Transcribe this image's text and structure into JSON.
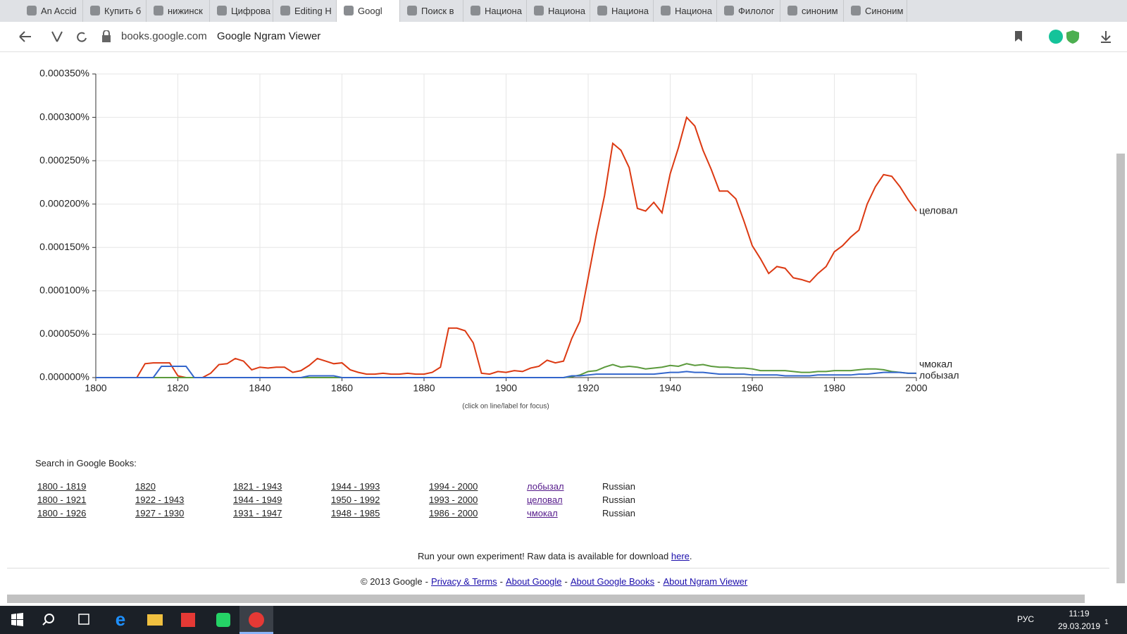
{
  "browser": {
    "tabs": [
      "An Accid",
      "Купить б",
      "нижинск",
      "Цифрова",
      "Editing H",
      "Googl",
      "Поиск в",
      "Национа",
      "Национа",
      "Национа",
      "Национа",
      "Филолог",
      "синоним",
      "Синоним"
    ],
    "active_tab": 5,
    "url": "books.google.com",
    "page_title": "Google Ngram Viewer"
  },
  "chart_data": {
    "type": "line",
    "note": "(click on line/label for focus)",
    "x": [
      1800,
      1802,
      1804,
      1806,
      1808,
      1810,
      1812,
      1814,
      1816,
      1818,
      1820,
      1822,
      1824,
      1826,
      1828,
      1830,
      1832,
      1834,
      1836,
      1838,
      1840,
      1842,
      1844,
      1846,
      1848,
      1850,
      1852,
      1854,
      1856,
      1858,
      1860,
      1862,
      1864,
      1866,
      1868,
      1870,
      1872,
      1874,
      1876,
      1878,
      1880,
      1882,
      1884,
      1886,
      1888,
      1890,
      1892,
      1894,
      1896,
      1898,
      1900,
      1902,
      1904,
      1906,
      1908,
      1910,
      1912,
      1914,
      1916,
      1918,
      1920,
      1922,
      1924,
      1926,
      1928,
      1930,
      1932,
      1934,
      1936,
      1938,
      1940,
      1942,
      1944,
      1946,
      1948,
      1950,
      1952,
      1954,
      1956,
      1958,
      1960,
      1962,
      1964,
      1966,
      1968,
      1970,
      1972,
      1974,
      1976,
      1978,
      1980,
      1982,
      1984,
      1986,
      1988,
      1990,
      1992,
      1994,
      1996,
      1998,
      2000
    ],
    "series": [
      {
        "name": "целовал",
        "color": "#dc3912",
        "values": [
          0,
          0,
          0,
          0,
          0,
          0,
          1.6e-05,
          1.7e-05,
          1.7e-05,
          1.7e-05,
          2e-06,
          0,
          0,
          0,
          5e-06,
          1.5e-05,
          1.6e-05,
          2.2e-05,
          1.9e-05,
          9e-06,
          1.2e-05,
          1.1e-05,
          1.2e-05,
          1.2e-05,
          6e-06,
          8e-06,
          1.4e-05,
          2.2e-05,
          1.9e-05,
          1.6e-05,
          1.7e-05,
          9e-06,
          6e-06,
          4e-06,
          4e-06,
          5e-06,
          4e-06,
          4e-06,
          5e-06,
          4e-06,
          4e-06,
          6e-06,
          1.2e-05,
          5.7e-05,
          5.7e-05,
          5.4e-05,
          4e-05,
          5e-06,
          4e-06,
          7e-06,
          6e-06,
          8e-06,
          7e-06,
          1.1e-05,
          1.3e-05,
          2e-05,
          1.7e-05,
          1.9e-05,
          4.5e-05,
          6.5e-05,
          0.000115,
          0.000165,
          0.00021,
          0.00027,
          0.000262,
          0.000242,
          0.000195,
          0.000192,
          0.000202,
          0.00019,
          0.000235,
          0.000265,
          0.0003,
          0.00029,
          0.000262,
          0.00024,
          0.000215,
          0.000215,
          0.000206,
          0.00018,
          0.000152,
          0.000137,
          0.00012,
          0.000128,
          0.000126,
          0.000115,
          0.000113,
          0.00011,
          0.00012,
          0.000128,
          0.000145,
          0.000152,
          0.000162,
          0.00017,
          0.0002,
          0.00022,
          0.000234,
          0.000232,
          0.00022,
          0.000205,
          0.000192
        ]
      },
      {
        "name": "чмокал",
        "color": "#5b9a3c",
        "values": [
          0,
          0,
          0,
          0,
          0,
          0,
          0,
          0,
          0,
          0,
          0,
          0,
          0,
          0,
          0,
          0,
          0,
          0,
          0,
          0,
          0,
          0,
          0,
          0,
          0,
          0,
          0,
          0,
          0,
          0,
          0,
          0,
          0,
          0,
          0,
          0,
          0,
          0,
          0,
          0,
          0,
          0,
          0,
          0,
          0,
          0,
          0,
          0,
          0,
          0,
          0,
          0,
          0,
          0,
          0,
          0,
          0,
          0,
          1e-06,
          3e-06,
          7e-06,
          8e-06,
          1.2e-05,
          1.5e-05,
          1.2e-05,
          1.3e-05,
          1.2e-05,
          1e-05,
          1.1e-05,
          1.2e-05,
          1.4e-05,
          1.3e-05,
          1.6e-05,
          1.4e-05,
          1.5e-05,
          1.3e-05,
          1.2e-05,
          1.2e-05,
          1.1e-05,
          1.1e-05,
          1e-05,
          8e-06,
          8e-06,
          8e-06,
          8e-06,
          7e-06,
          6e-06,
          6e-06,
          7e-06,
          7e-06,
          8e-06,
          8e-06,
          8e-06,
          9e-06,
          1e-05,
          1e-05,
          9e-06,
          7e-06,
          6e-06,
          5e-06,
          5e-06
        ]
      },
      {
        "name": "лобызал",
        "color": "#3366cc",
        "values": [
          0,
          0,
          0,
          0,
          0,
          0,
          0,
          0,
          1.3e-05,
          1.3e-05,
          1.3e-05,
          1.3e-05,
          0,
          0,
          0,
          0,
          0,
          0,
          0,
          0,
          0,
          0,
          0,
          0,
          0,
          0,
          2e-06,
          2e-06,
          2e-06,
          2e-06,
          0,
          0,
          0,
          0,
          0,
          0,
          0,
          0,
          0,
          0,
          0,
          0,
          0,
          0,
          0,
          0,
          0,
          0,
          0,
          0,
          0,
          0,
          0,
          0,
          0,
          0,
          0,
          0,
          2e-06,
          2e-06,
          3e-06,
          4e-06,
          4e-06,
          4e-06,
          4e-06,
          4e-06,
          4e-06,
          4e-06,
          4e-06,
          5e-06,
          6e-06,
          6e-06,
          7e-06,
          6e-06,
          6e-06,
          5e-06,
          4e-06,
          4e-06,
          4e-06,
          4e-06,
          3e-06,
          3e-06,
          3e-06,
          3e-06,
          2e-06,
          2e-06,
          2e-06,
          2e-06,
          3e-06,
          3e-06,
          3e-06,
          3e-06,
          3e-06,
          4e-06,
          4e-06,
          5e-06,
          6e-06,
          6e-06,
          6e-06,
          5e-06,
          5e-06
        ]
      }
    ],
    "xlim": [
      1800,
      2000
    ],
    "xticks": [
      1800,
      1820,
      1840,
      1860,
      1880,
      1900,
      1920,
      1940,
      1960,
      1980,
      2000
    ],
    "ylim": [
      0,
      0.00035
    ],
    "yticks": [
      {
        "value": 0,
        "label": "0.000000%"
      },
      {
        "value": 5e-05,
        "label": "0.000050%"
      },
      {
        "value": 0.0001,
        "label": "0.000100%"
      },
      {
        "value": 0.00015,
        "label": "0.000150%"
      },
      {
        "value": 0.0002,
        "label": "0.000200%"
      },
      {
        "value": 0.00025,
        "label": "0.000250%"
      },
      {
        "value": 0.0003,
        "label": "0.000300%"
      },
      {
        "value": 0.00035,
        "label": "0.000350%"
      }
    ],
    "grid": true
  },
  "search": {
    "heading": "Search in Google Books:",
    "rows": [
      [
        "1800 - 1819",
        "1820",
        "1821 - 1943",
        "1944 - 1993",
        "1994 - 2000",
        "лобызал",
        "Russian"
      ],
      [
        "1800 - 1921",
        "1922 - 1943",
        "1944 - 1949",
        "1950 - 1992",
        "1993 - 2000",
        "целовал",
        "Russian"
      ],
      [
        "1800 - 1926",
        "1927 - 1930",
        "1931 - 1947",
        "1948 - 1985",
        "1986 - 2000",
        "чмокал",
        "Russian"
      ]
    ]
  },
  "raw_data": {
    "text": "Run your own experiment! Raw data is available for download",
    "link": "here",
    "end": "."
  },
  "footer": {
    "copyright": "© 2013 Google",
    "separator": "-",
    "links": [
      "Privacy & Terms",
      "About Google",
      "About Google Books",
      "About Ngram Viewer"
    ]
  },
  "taskbar": {
    "language": "РУС",
    "time": "11:19",
    "date": "29.03.2019",
    "notifications": "1"
  }
}
